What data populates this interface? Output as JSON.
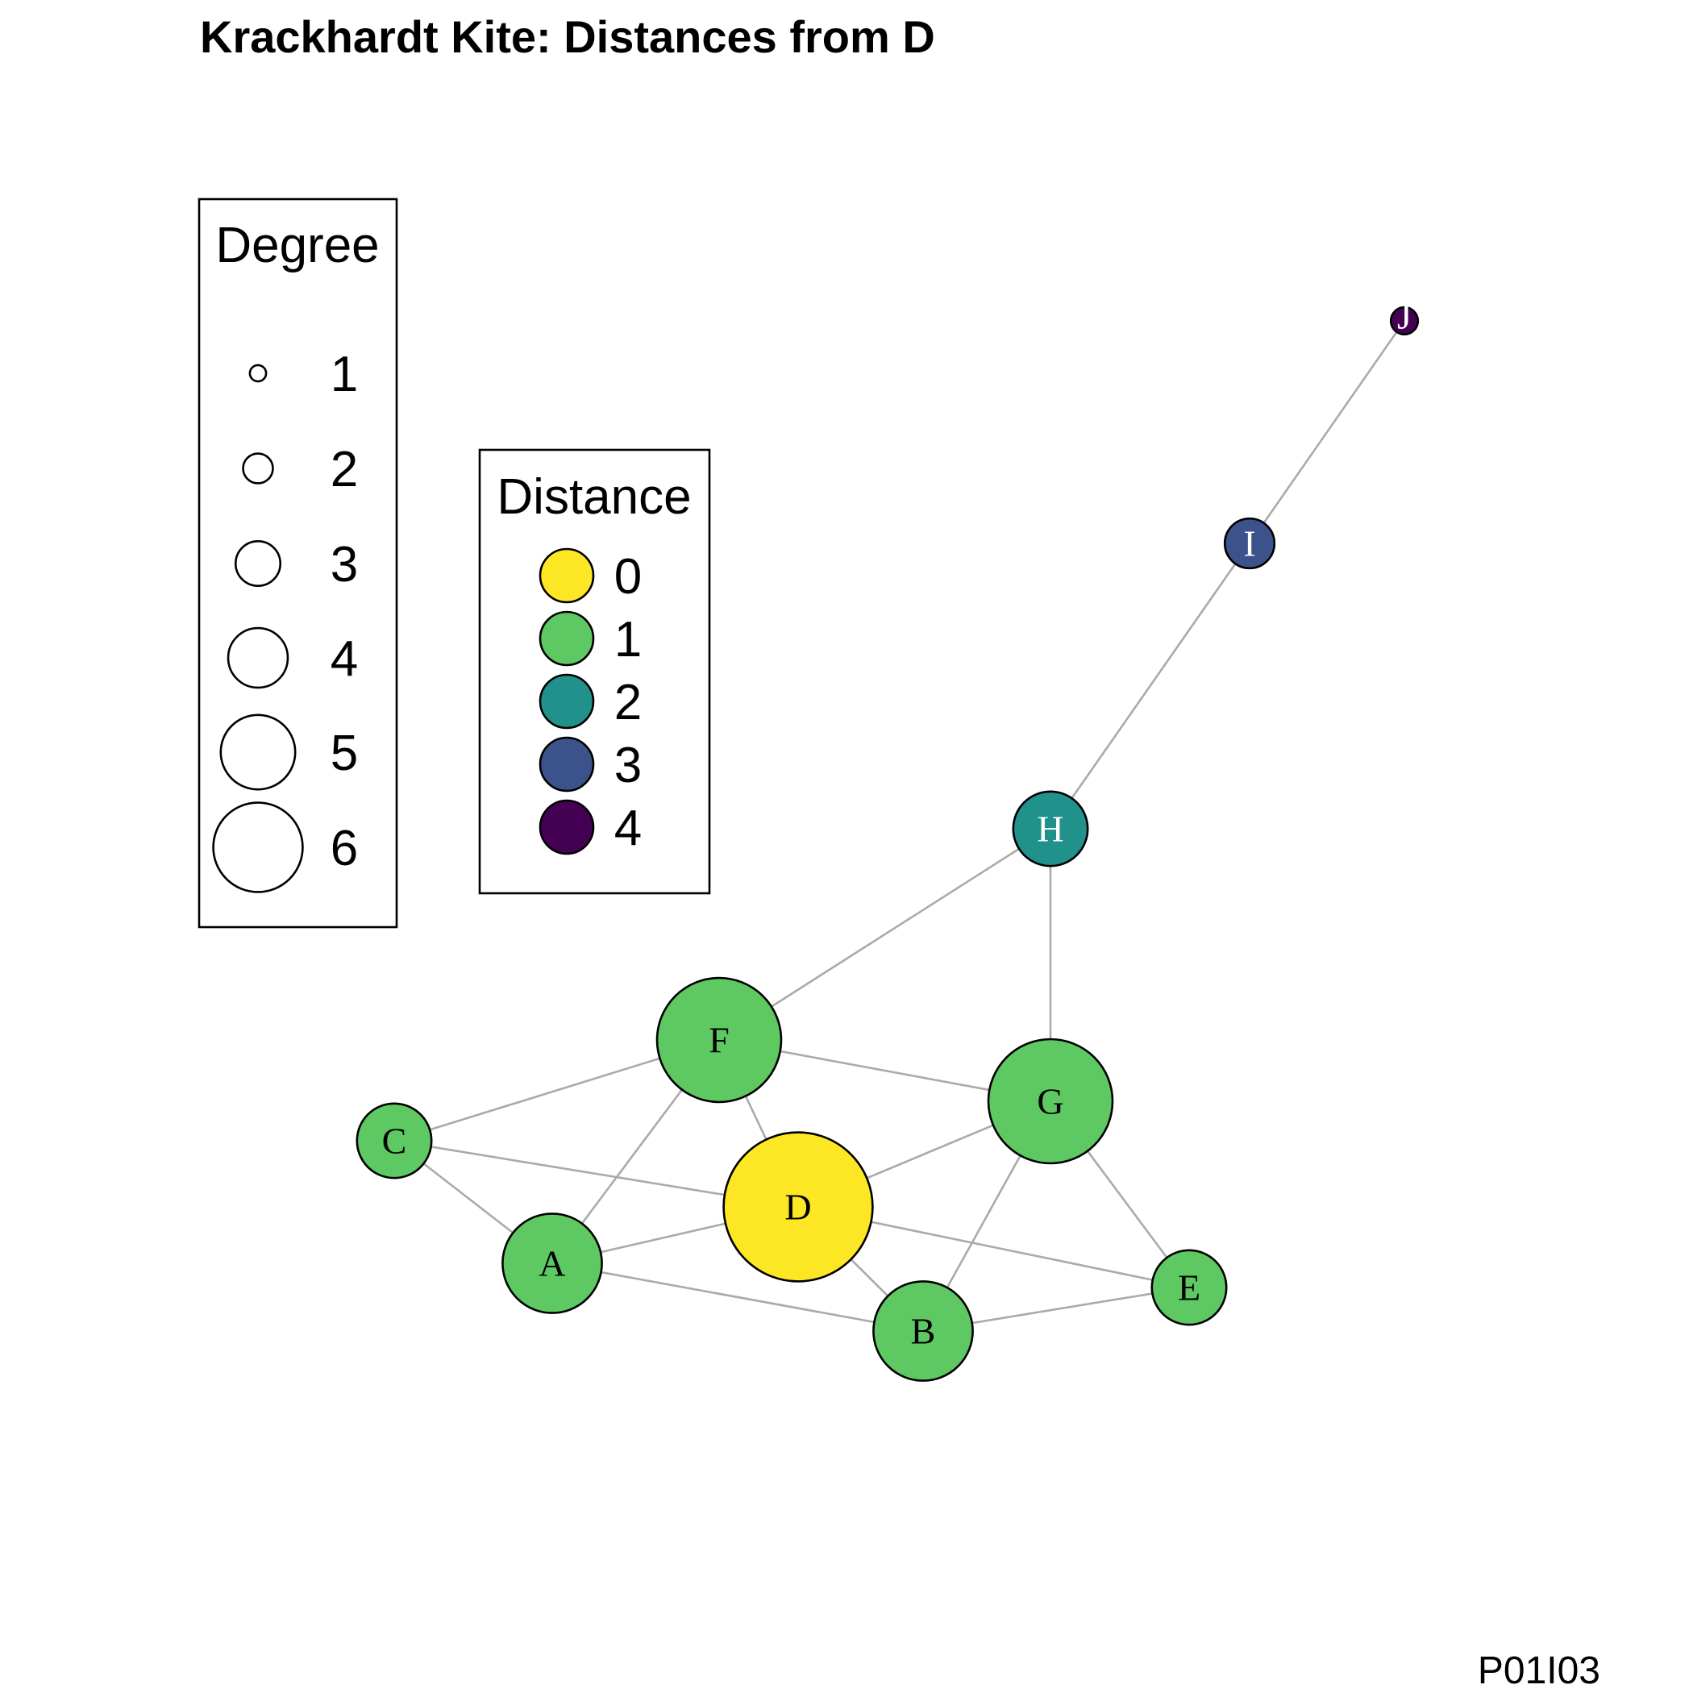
{
  "title": "Krackhardt Kite: Distances from D",
  "caption": "P01I03",
  "degree_legend": {
    "title": "Degree",
    "items": [
      {
        "value": 1,
        "label": "1"
      },
      {
        "value": 2,
        "label": "2"
      },
      {
        "value": 3,
        "label": "3"
      },
      {
        "value": 4,
        "label": "4"
      },
      {
        "value": 5,
        "label": "5"
      },
      {
        "value": 6,
        "label": "6"
      }
    ]
  },
  "distance_legend": {
    "title": "Distance",
    "items": [
      {
        "value": 0,
        "label": "0",
        "color": "#FDE725"
      },
      {
        "value": 1,
        "label": "1",
        "color": "#5EC962"
      },
      {
        "value": 2,
        "label": "2",
        "color": "#21918C"
      },
      {
        "value": 3,
        "label": "3",
        "color": "#3B528B"
      },
      {
        "value": 4,
        "label": "4",
        "color": "#440154"
      }
    ]
  },
  "nodes": [
    {
      "id": "A",
      "label": "A",
      "degree": 4,
      "distance": 1
    },
    {
      "id": "B",
      "label": "B",
      "degree": 4,
      "distance": 1
    },
    {
      "id": "C",
      "label": "C",
      "degree": 3,
      "distance": 1
    },
    {
      "id": "D",
      "label": "D",
      "degree": 6,
      "distance": 0
    },
    {
      "id": "E",
      "label": "E",
      "degree": 3,
      "distance": 1
    },
    {
      "id": "F",
      "label": "F",
      "degree": 5,
      "distance": 1
    },
    {
      "id": "G",
      "label": "G",
      "degree": 5,
      "distance": 1
    },
    {
      "id": "H",
      "label": "H",
      "degree": 3,
      "distance": 2
    },
    {
      "id": "I",
      "label": "I",
      "degree": 2,
      "distance": 3
    },
    {
      "id": "J",
      "label": "J",
      "degree": 1,
      "distance": 4
    }
  ],
  "edges": [
    [
      "A",
      "B"
    ],
    [
      "A",
      "C"
    ],
    [
      "A",
      "D"
    ],
    [
      "A",
      "F"
    ],
    [
      "B",
      "D"
    ],
    [
      "B",
      "E"
    ],
    [
      "B",
      "G"
    ],
    [
      "C",
      "D"
    ],
    [
      "C",
      "F"
    ],
    [
      "D",
      "E"
    ],
    [
      "D",
      "F"
    ],
    [
      "D",
      "G"
    ],
    [
      "E",
      "G"
    ],
    [
      "F",
      "G"
    ],
    [
      "F",
      "H"
    ],
    [
      "G",
      "H"
    ],
    [
      "H",
      "I"
    ],
    [
      "I",
      "J"
    ]
  ]
}
